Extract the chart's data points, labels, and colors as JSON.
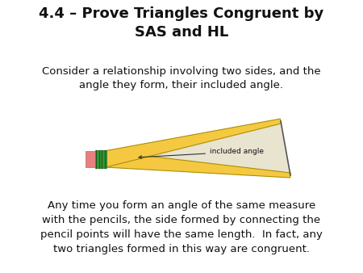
{
  "title": "4.4 – Prove Triangles Congruent by\nSAS and HL",
  "subtitle": "Consider a relationship involving two sides, and the\nangle they form, their included angle.",
  "body_text": "Any time you form an angle of the same measure\nwith the pencils, the side formed by connecting the\npencil points will have the same length.  In fact, any\ntwo triangles formed in this way are congruent.",
  "background_color": "#ffffff",
  "title_fontsize": 13,
  "subtitle_fontsize": 9.5,
  "body_fontsize": 9.5,
  "pencil_label": "included angle",
  "pencil_color_body": "#F5C842",
  "pencil_color_eraser": "#E88080",
  "pencil_color_ferrule_green": "#3A9A3A",
  "pencil_color_tip": "#C8A060",
  "title_color": "#111111",
  "text_color": "#111111"
}
